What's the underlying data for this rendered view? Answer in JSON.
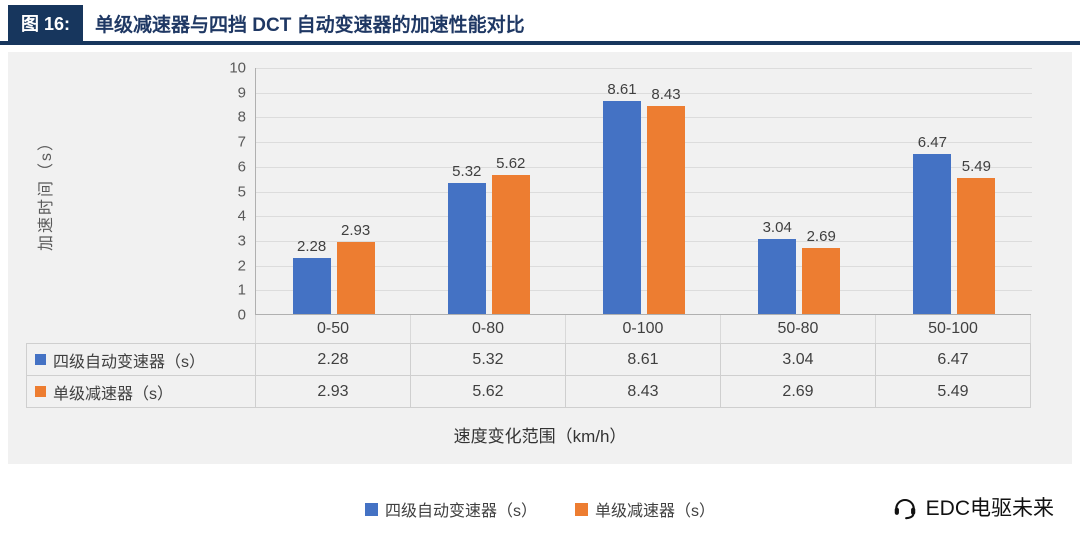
{
  "header": {
    "badge": "图 16:",
    "title": "单级减速器与四挡 DCT 自动变速器的加速性能对比"
  },
  "chart_data": {
    "type": "bar",
    "title": "单级减速器与四挡DCT自动变速器的加速性能对比",
    "categories": [
      "0-50",
      "0-80",
      "0-100",
      "50-80",
      "50-100"
    ],
    "series": [
      {
        "name": "四级自动变速器（s）",
        "color": "#4472C4",
        "values": [
          2.28,
          5.32,
          8.61,
          3.04,
          6.47
        ]
      },
      {
        "name": "单级减速器（s）",
        "color": "#ED7D31",
        "values": [
          2.93,
          5.62,
          8.43,
          2.69,
          5.49
        ]
      }
    ],
    "ylabel": "加速时间（s）",
    "xlabel": "速度变化范围（km/h）",
    "ylim": [
      0,
      10
    ],
    "ytick_step": 1,
    "grid": true,
    "legend_position": "bottom",
    "data_table": true
  },
  "watermark": {
    "label": "EDC电驱未来"
  }
}
